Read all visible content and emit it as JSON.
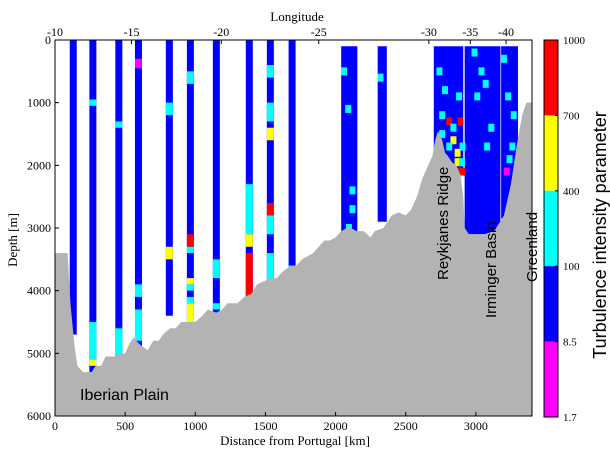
{
  "chart_data": {
    "type": "heatmap",
    "title": "",
    "top_axis_label": "Longitude",
    "top_ticks": [
      {
        "label": "-10",
        "km": 0
      },
      {
        "label": "-15",
        "km": 545
      },
      {
        "label": "-20",
        "km": 1185
      },
      {
        "label": "-25",
        "km": 1880
      },
      {
        "label": "-30",
        "km": 2665
      },
      {
        "label": "-35",
        "km": 2960
      },
      {
        "label": "-40",
        "km": 3215
      }
    ],
    "xlabel": "Distance from Portugal [km]",
    "ylabel": "Depth [m]",
    "xlim": [
      0,
      3400
    ],
    "ylim": [
      6000,
      0
    ],
    "x_ticks": [
      "0",
      "500",
      "1000",
      "1500",
      "2000",
      "2500",
      "3000"
    ],
    "x_tick_values": [
      0,
      500,
      1000,
      1500,
      2000,
      2500,
      3000
    ],
    "y_ticks": [
      "0",
      "1000",
      "2000",
      "3000",
      "4000",
      "5000",
      "6000"
    ],
    "y_tick_values": [
      0,
      1000,
      2000,
      3000,
      4000,
      5000,
      6000
    ],
    "colorbar": {
      "label": "Turbulence intensity parameter",
      "tick_labels": [
        "1000",
        "700",
        "400",
        "100",
        "8.5",
        "1.7"
      ],
      "bands": [
        {
          "color": "#ff0000",
          "range": [
            700,
            1000
          ]
        },
        {
          "color": "#ffff00",
          "range": [
            400,
            700
          ]
        },
        {
          "color": "#00ffff",
          "range": [
            100,
            400
          ]
        },
        {
          "color": "#0000ff",
          "range": [
            8.5,
            100
          ]
        },
        {
          "color": "#ff00ff",
          "range": [
            1.7,
            8.5
          ]
        }
      ]
    },
    "annotations": [
      "Iberian Plain",
      "Reykjanes Ridge",
      "Irminger Basin",
      "Greenland"
    ],
    "colors": {
      "blue": "#0000ff",
      "cyan": "#00ffff",
      "yellow": "#ffff00",
      "red": "#ff0000",
      "magenta": "#ff00ff",
      "seafloor": "#b3b3b3"
    },
    "seafloor": [
      [
        0,
        3400
      ],
      [
        90,
        3400
      ],
      [
        110,
        4200
      ],
      [
        140,
        4900
      ],
      [
        160,
        5200
      ],
      [
        200,
        5300
      ],
      [
        260,
        5300
      ],
      [
        290,
        5200
      ],
      [
        330,
        5200
      ],
      [
        360,
        5050
      ],
      [
        430,
        5050
      ],
      [
        460,
        5000
      ],
      [
        500,
        5000
      ],
      [
        530,
        4850
      ],
      [
        560,
        4750
      ],
      [
        600,
        4850
      ],
      [
        660,
        4950
      ],
      [
        700,
        4800
      ],
      [
        740,
        4800
      ],
      [
        770,
        4700
      ],
      [
        820,
        4600
      ],
      [
        860,
        4600
      ],
      [
        900,
        4500
      ],
      [
        950,
        4500
      ],
      [
        1000,
        4500
      ],
      [
        1050,
        4400
      ],
      [
        1090,
        4300
      ],
      [
        1150,
        4350
      ],
      [
        1190,
        4300
      ],
      [
        1230,
        4200
      ],
      [
        1300,
        4200
      ],
      [
        1350,
        4100
      ],
      [
        1400,
        4050
      ],
      [
        1440,
        3900
      ],
      [
        1490,
        3850
      ],
      [
        1540,
        3800
      ],
      [
        1580,
        3800
      ],
      [
        1620,
        3700
      ],
      [
        1680,
        3600
      ],
      [
        1720,
        3600
      ],
      [
        1760,
        3500
      ],
      [
        1800,
        3450
      ],
      [
        1840,
        3400
      ],
      [
        1880,
        3300
      ],
      [
        1920,
        3200
      ],
      [
        1960,
        3200
      ],
      [
        2000,
        3150
      ],
      [
        2040,
        3050
      ],
      [
        2080,
        3000
      ],
      [
        2110,
        3000
      ],
      [
        2150,
        3050
      ],
      [
        2200,
        3050
      ],
      [
        2250,
        3150
      ],
      [
        2280,
        3050
      ],
      [
        2340,
        3000
      ],
      [
        2400,
        2800
      ],
      [
        2450,
        2750
      ],
      [
        2500,
        2800
      ],
      [
        2540,
        2700
      ],
      [
        2580,
        2500
      ],
      [
        2620,
        2200
      ],
      [
        2660,
        2000
      ],
      [
        2690,
        1850
      ],
      [
        2710,
        1600
      ],
      [
        2730,
        1450
      ],
      [
        2760,
        1600
      ],
      [
        2780,
        1800
      ],
      [
        2800,
        1850
      ],
      [
        2830,
        1950
      ],
      [
        2860,
        2000
      ],
      [
        2890,
        2150
      ],
      [
        2910,
        2500
      ],
      [
        2920,
        3000
      ],
      [
        2950,
        3100
      ],
      [
        3000,
        3100
      ],
      [
        3060,
        3100
      ],
      [
        3130,
        3050
      ],
      [
        3200,
        2800
      ],
      [
        3250,
        2300
      ],
      [
        3290,
        1700
      ],
      [
        3330,
        1200
      ],
      [
        3360,
        1000
      ],
      [
        3400,
        1000
      ]
    ],
    "casts": [
      {
        "x": 130,
        "bottom": 4700,
        "segs": []
      },
      {
        "x": 270,
        "bottom": 5300,
        "segs": [
          [
            950,
            1050,
            "cyan"
          ],
          [
            4500,
            5100,
            "cyan"
          ],
          [
            5100,
            5200,
            "yellow"
          ]
        ]
      },
      {
        "x": 455,
        "bottom": 5300,
        "segs": [
          [
            1300,
            1400,
            "cyan"
          ],
          [
            4600,
            5300,
            "cyan"
          ]
        ]
      },
      {
        "x": 595,
        "bottom": 4950,
        "segs": [
          [
            300,
            450,
            "magenta"
          ],
          [
            3900,
            4100,
            "cyan"
          ],
          [
            4300,
            4800,
            "cyan"
          ]
        ]
      },
      {
        "x": 815,
        "bottom": 4400,
        "segs": [
          [
            1000,
            1200,
            "cyan"
          ],
          [
            3300,
            3500,
            "yellow"
          ]
        ]
      },
      {
        "x": 965,
        "bottom": 4650,
        "segs": [
          [
            500,
            700,
            "cyan"
          ],
          [
            3100,
            3300,
            "red"
          ],
          [
            3300,
            3400,
            "cyan"
          ],
          [
            3800,
            3900,
            "yellow"
          ],
          [
            3900,
            4000,
            "cyan"
          ],
          [
            4100,
            4200,
            "cyan"
          ],
          [
            4200,
            4600,
            "yellow"
          ]
        ]
      },
      {
        "x": 1150,
        "bottom": 4450,
        "segs": [
          [
            3500,
            3800,
            "cyan"
          ],
          [
            4200,
            4300,
            "cyan"
          ]
        ]
      },
      {
        "x": 1385,
        "bottom": 4300,
        "segs": [
          [
            2300,
            3100,
            "cyan"
          ],
          [
            3100,
            3300,
            "yellow"
          ],
          [
            3400,
            4300,
            "red"
          ]
        ]
      },
      {
        "x": 1535,
        "bottom": 4100,
        "segs": [
          [
            400,
            600,
            "cyan"
          ],
          [
            1000,
            1300,
            "cyan"
          ],
          [
            1400,
            1600,
            "yellow"
          ],
          [
            2600,
            2800,
            "red"
          ],
          [
            2800,
            3100,
            "cyan"
          ],
          [
            3400,
            3900,
            "cyan"
          ],
          [
            3900,
            4000,
            "yellow"
          ]
        ]
      },
      {
        "x": 1690,
        "bottom": 3900,
        "segs": [
          [
            3600,
            3750,
            "cyan"
          ]
        ]
      }
    ],
    "sections": [
      {
        "x0": 2040,
        "x1": 2155,
        "top": 100,
        "bottom": 3600
      },
      {
        "x0": 2300,
        "x1": 2365,
        "top": 100,
        "bottom": 2900
      },
      {
        "x0": 2700,
        "x1": 2910,
        "top": 100,
        "bottom": 2150
      },
      {
        "x0": 2920,
        "x1": 3175,
        "top": 100,
        "bottom": 3100
      },
      {
        "x0": 3180,
        "x1": 3300,
        "top": 100,
        "bottom": 2850
      }
    ],
    "section_cells": [
      [
        2060,
        500,
        "cyan"
      ],
      [
        2090,
        1100,
        "cyan"
      ],
      [
        2120,
        2400,
        "cyan"
      ],
      [
        2095,
        3000,
        "cyan"
      ],
      [
        2120,
        2700,
        "cyan"
      ],
      [
        2320,
        600,
        "cyan"
      ],
      [
        2740,
        500,
        "cyan"
      ],
      [
        2780,
        800,
        "cyan"
      ],
      [
        2810,
        1300,
        "red"
      ],
      [
        2840,
        1400,
        "cyan"
      ],
      [
        2840,
        1600,
        "yellow"
      ],
      [
        2870,
        1800,
        "yellow"
      ],
      [
        2870,
        1950,
        "yellow"
      ],
      [
        2900,
        1950,
        "cyan"
      ],
      [
        2870,
        2100,
        "red"
      ],
      [
        2905,
        2100,
        "red"
      ],
      [
        2890,
        1300,
        "red"
      ],
      [
        2810,
        1700,
        "cyan"
      ],
      [
        2760,
        1200,
        "cyan"
      ],
      [
        2880,
        900,
        "cyan"
      ],
      [
        2760,
        1500,
        "cyan"
      ],
      [
        2905,
        1700,
        "cyan"
      ],
      [
        2990,
        200,
        "cyan"
      ],
      [
        3040,
        500,
        "cyan"
      ],
      [
        3010,
        900,
        "cyan"
      ],
      [
        3070,
        700,
        "cyan"
      ],
      [
        3110,
        1400,
        "cyan"
      ],
      [
        3080,
        1700,
        "cyan"
      ],
      [
        3200,
        300,
        "cyan"
      ],
      [
        3230,
        900,
        "cyan"
      ],
      [
        3270,
        1200,
        "cyan"
      ],
      [
        3240,
        1900,
        "cyan"
      ],
      [
        3220,
        2100,
        "magenta"
      ],
      [
        3260,
        1700,
        "cyan"
      ]
    ]
  }
}
